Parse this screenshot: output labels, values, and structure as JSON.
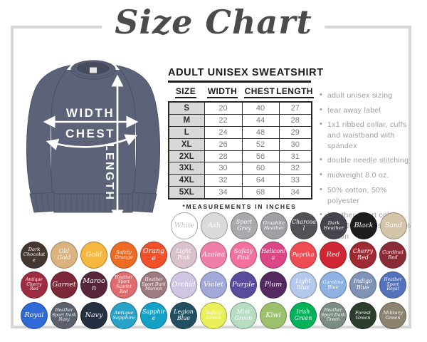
{
  "title": "Size Chart",
  "diagram": {
    "width_label": "WIDTH",
    "chest_label": "CHEST",
    "length_label": "LENGTH",
    "shirt_color": "#5c6277"
  },
  "size_table": {
    "heading": "ADULT UNISEX SWEATSHIRT",
    "columns": [
      "SIZE",
      "WIDTH",
      "CHEST",
      "LENGTH"
    ],
    "rows": [
      [
        "S",
        20,
        40,
        27
      ],
      [
        "M",
        22,
        44,
        28
      ],
      [
        "L",
        24,
        48,
        29
      ],
      [
        "XL",
        26,
        52,
        30
      ],
      [
        "2XL",
        28,
        56,
        31
      ],
      [
        "3XL",
        30,
        60,
        32
      ],
      [
        "4XL",
        32,
        64,
        33
      ],
      [
        "5XL",
        34,
        68,
        34
      ]
    ],
    "footnote": "*MEASUREMENTS IN INCHES"
  },
  "features": [
    "adult unisex sizing",
    "tear away label",
    "1x1 ribbed collar, cuffs and waistband with spandex",
    "double needle stitching",
    "midweight 8.0 oz.",
    "50% cotton, 50% polyester",
    "Heather Sport colors are 60% polyester, 40% cotton"
  ],
  "swatch_rows": [
    [
      {
        "name": "White",
        "hex": "#ffffff",
        "text": "#c0c0c0",
        "border": "#a6a6a6"
      },
      {
        "name": "Ash",
        "hex": "#d9dadc"
      },
      {
        "name": "Sport Grey",
        "hex": "#a9aaae"
      },
      {
        "name": "Graphite Heather",
        "hex": "#a09fa3"
      },
      {
        "name": "Charcoal",
        "hex": "#525155"
      },
      {
        "name": "Dark Heather",
        "hex": "#46444c"
      },
      {
        "name": "Black",
        "hex": "#1d1c1f"
      },
      {
        "name": "Sand",
        "hex": "#d4c5aa"
      }
    ],
    [
      {
        "name": "Dark Chocolate",
        "hex": "#443630"
      },
      {
        "name": "Old Gold",
        "hex": "#dbb37e"
      },
      {
        "name": "Gold",
        "hex": "#f5b740"
      },
      {
        "name": "Safety Orange",
        "hex": "#ee6b23"
      },
      {
        "name": "Orange",
        "hex": "#f1502a"
      },
      {
        "name": "Light Pink",
        "hex": "#dac2cd"
      },
      {
        "name": "Azalea",
        "hex": "#ef7fa9"
      },
      {
        "name": "Safety Pink",
        "hex": "#f4719f"
      },
      {
        "name": "Heliconia",
        "hex": "#dc4687"
      },
      {
        "name": "Paprika",
        "hex": "#ee4c55"
      },
      {
        "name": "Red",
        "hex": "#d02533"
      },
      {
        "name": "Cherry Red",
        "hex": "#9e2a33"
      },
      {
        "name": "Cardinal Red",
        "hex": "#8a2b38"
      }
    ],
    [
      {
        "name": "Antique Cherry Red",
        "hex": "#9e2b40"
      },
      {
        "name": "Garnet",
        "hex": "#7c2838"
      },
      {
        "name": "Maroon",
        "hex": "#57263a"
      },
      {
        "name": "Heather Sport Scarlet Red",
        "hex": "#e06b6e"
      },
      {
        "name": "Heather Sport Dark Maroon",
        "hex": "#9e7a81"
      },
      {
        "name": "Orchid",
        "hex": "#d1c5e4"
      },
      {
        "name": "Violet",
        "hex": "#a2a9d8"
      },
      {
        "name": "Purple",
        "hex": "#5a4b9f"
      },
      {
        "name": "Plum",
        "hex": "#542a60"
      },
      {
        "name": "Light Blue",
        "hex": "#b3c8ea"
      },
      {
        "name": "Carolina Blue",
        "hex": "#8db2e1"
      },
      {
        "name": "Indigo Blue",
        "hex": "#7e93b6"
      },
      {
        "name": "Heather Sport Royal",
        "hex": "#5273bc"
      }
    ],
    [
      {
        "name": "Royal",
        "hex": "#2e6bd8"
      },
      {
        "name": "Heather Sport Dark Navy",
        "hex": "#5a616d"
      },
      {
        "name": "Navy",
        "hex": "#242f42"
      },
      {
        "name": "Antique Sapphire",
        "hex": "#28a3c7"
      },
      {
        "name": "Sapphire",
        "hex": "#14a1c6"
      },
      {
        "name": "Legion Blue",
        "hex": "#215062"
      },
      {
        "name": "Safety Green",
        "hex": "#e9f059"
      },
      {
        "name": "Mint Green",
        "hex": "#b6ddc2"
      },
      {
        "name": "Kiwi",
        "hex": "#9dc06d"
      },
      {
        "name": "Irish Green",
        "hex": "#00b25a"
      },
      {
        "name": "Heather Sport Dark Green",
        "hex": "#7d8c82"
      },
      {
        "name": "Forest Green",
        "hex": "#2c3d2e"
      },
      {
        "name": "Military Green",
        "hex": "#8b8270"
      }
    ]
  ]
}
